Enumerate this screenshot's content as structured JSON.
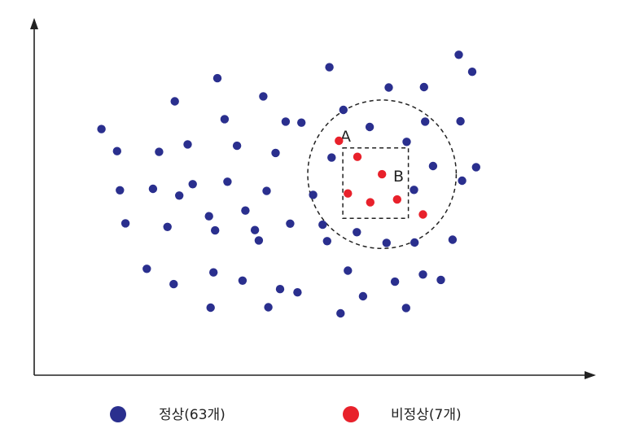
{
  "chart_data": {
    "type": "scatter",
    "title": "",
    "xlabel": "",
    "ylabel": "",
    "xlim": [
      0,
      100
    ],
    "ylim": [
      0,
      100
    ],
    "grid": false,
    "legend_position": "bottom",
    "colors": {
      "normal": "#2a2f8e",
      "abnormal": "#e8212b",
      "axis": "#222222",
      "text": "#222222"
    },
    "series": [
      {
        "name": "정상(63개)",
        "color": "#2a2f8e",
        "points": [
          [
            12.0,
            69.2
          ],
          [
            14.8,
            63.0
          ],
          [
            15.3,
            52.0
          ],
          [
            16.3,
            42.7
          ],
          [
            20.1,
            29.9
          ],
          [
            21.2,
            52.4
          ],
          [
            22.3,
            62.8
          ],
          [
            23.8,
            41.7
          ],
          [
            24.9,
            25.6
          ],
          [
            25.1,
            77.0
          ],
          [
            25.9,
            50.5
          ],
          [
            27.4,
            64.9
          ],
          [
            28.3,
            53.7
          ],
          [
            31.2,
            44.7
          ],
          [
            31.5,
            19.0
          ],
          [
            32.0,
            28.9
          ],
          [
            32.3,
            40.7
          ],
          [
            32.7,
            83.5
          ],
          [
            34.0,
            72.0
          ],
          [
            34.5,
            54.4
          ],
          [
            36.2,
            64.5
          ],
          [
            37.2,
            26.6
          ],
          [
            37.7,
            46.3
          ],
          [
            39.4,
            40.8
          ],
          [
            40.1,
            37.9
          ],
          [
            40.9,
            78.4
          ],
          [
            41.5,
            51.8
          ],
          [
            41.8,
            19.1
          ],
          [
            43.1,
            62.5
          ],
          [
            43.9,
            24.2
          ],
          [
            44.9,
            71.3
          ],
          [
            45.7,
            42.6
          ],
          [
            47.0,
            23.3
          ],
          [
            47.7,
            71.0
          ],
          [
            49.8,
            50.7
          ],
          [
            51.5,
            42.3
          ],
          [
            52.3,
            37.7
          ],
          [
            52.7,
            86.6
          ],
          [
            53.1,
            61.2
          ],
          [
            54.7,
            17.4
          ],
          [
            55.2,
            74.6
          ],
          [
            56.0,
            29.4
          ],
          [
            57.6,
            40.2
          ],
          [
            58.7,
            22.2
          ],
          [
            59.9,
            69.8
          ],
          [
            62.9,
            37.2
          ],
          [
            63.3,
            80.9
          ],
          [
            64.4,
            26.3
          ],
          [
            66.4,
            18.9
          ],
          [
            66.5,
            65.6
          ],
          [
            67.8,
            52.1
          ],
          [
            67.9,
            37.3
          ],
          [
            69.4,
            28.3
          ],
          [
            69.6,
            81.0
          ],
          [
            69.8,
            71.3
          ],
          [
            71.2,
            58.8
          ],
          [
            72.6,
            26.8
          ],
          [
            74.7,
            38.1
          ],
          [
            75.8,
            90.1
          ],
          [
            76.1,
            71.4
          ],
          [
            76.4,
            54.7
          ],
          [
            78.2,
            85.3
          ],
          [
            78.9,
            58.5
          ]
        ]
      },
      {
        "name": "비정상(7개)",
        "color": "#e8212b",
        "points": [
          [
            54.4,
            65.9
          ],
          [
            56.0,
            51.1
          ],
          [
            57.7,
            61.4
          ],
          [
            60.0,
            48.6
          ],
          [
            62.1,
            56.5
          ],
          [
            64.8,
            49.4
          ],
          [
            69.4,
            45.2
          ]
        ]
      }
    ],
    "regions": [
      {
        "label": "A",
        "shape": "circle",
        "center": [
          62.1,
          56.5
        ],
        "radius_x": 26.5
      },
      {
        "label": "B",
        "shape": "rectangle",
        "x_range": [
          55.1,
          66.8
        ],
        "y_range": [
          44.1,
          63.9
        ]
      }
    ]
  }
}
